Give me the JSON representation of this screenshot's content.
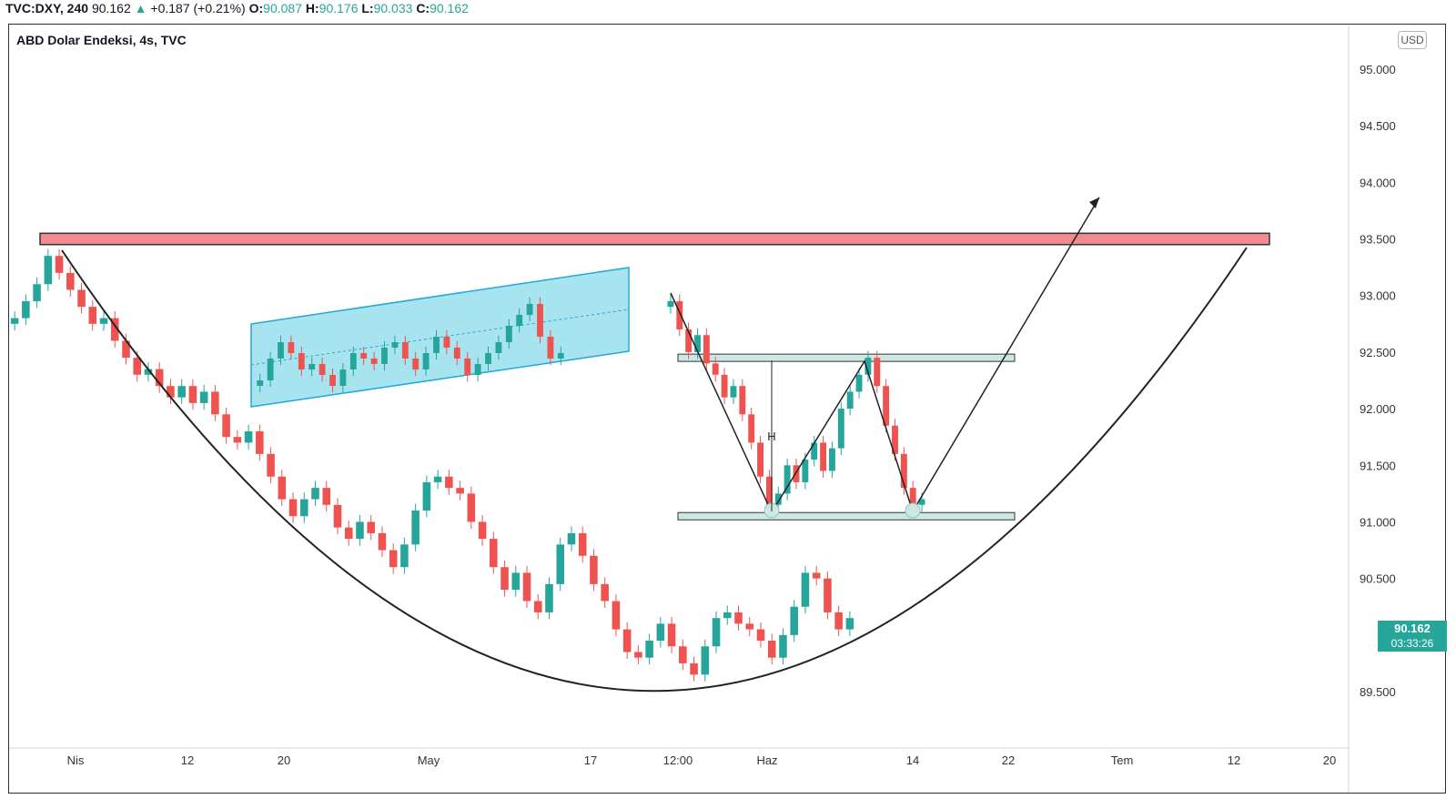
{
  "header": {
    "symbol": "TVC:DXY, 240",
    "last": "90.162",
    "change_arrow": "▲",
    "change": "+0.187 (+0.21%)",
    "o_label": "O:",
    "o_value": "90.087",
    "h_label": "H:",
    "h_value": "90.176",
    "l_label": "L:",
    "l_value": "90.033",
    "c_label": "C:",
    "c_value": "90.162"
  },
  "chart_title": "ABD Dolar Endeksi, 4s, TVC",
  "currency_button": "USD",
  "price_badge": {
    "price": "90.162",
    "timer": "03:33:26"
  },
  "colors": {
    "up": "#26a69a",
    "down": "#ef5350",
    "resistance_fill": "#f28b8f",
    "channel_fill": "#a8e3f0",
    "channel_border": "#1fa9d6",
    "level_fill": "#cde8e4"
  },
  "annotations": {
    "measure_label": "H"
  },
  "chart_data": {
    "type": "candlestick",
    "title": "ABD Dolar Endeksi, 4s, TVC",
    "y_axis": {
      "ticks": [
        95.0,
        94.5,
        94.0,
        93.5,
        93.0,
        92.5,
        92.0,
        91.5,
        91.0,
        90.5,
        89.5
      ],
      "tick_labels": [
        "95.000",
        "94.500",
        "94.000",
        "93.500",
        "93.000",
        "92.500",
        "92.000",
        "91.500",
        "91.000",
        "90.500",
        "89.500"
      ],
      "range": [
        89.05,
        95.4
      ]
    },
    "x_axis": {
      "tick_labels": [
        "Nis",
        "12",
        "20",
        "May",
        "17",
        "12:00",
        "Haz",
        "14",
        "22",
        "Tem",
        "12",
        "20"
      ]
    },
    "main_series_closes": [
      92.8,
      92.95,
      93.1,
      93.35,
      93.2,
      93.05,
      92.9,
      92.75,
      92.8,
      92.6,
      92.45,
      92.3,
      92.35,
      92.2,
      92.1,
      92.2,
      92.05,
      92.15,
      91.95,
      91.75,
      91.7,
      91.8,
      91.6,
      91.4,
      91.2,
      91.05,
      91.2,
      91.3,
      91.15,
      90.95,
      90.85,
      91.0,
      90.9,
      90.75,
      90.6,
      90.8,
      91.1,
      91.35,
      91.4,
      91.3,
      91.25,
      91.0,
      90.85,
      90.6,
      90.4,
      90.55,
      90.3,
      90.2,
      90.45,
      90.8,
      90.9,
      90.7,
      90.45,
      90.3,
      90.05,
      89.85,
      89.8,
      89.95,
      90.1,
      89.9,
      89.75,
      89.65,
      89.9,
      90.15,
      90.2,
      90.1,
      90.05,
      89.95,
      89.8,
      90.0,
      90.25,
      90.55,
      90.5,
      90.2,
      90.05,
      90.15
    ],
    "inset_channel_closes": [
      92.35,
      92.55,
      92.7,
      92.6,
      92.45,
      92.5,
      92.4,
      92.3,
      92.45,
      92.6,
      92.55,
      92.5,
      92.65,
      92.7,
      92.55,
      92.45,
      92.6,
      92.75,
      92.65,
      92.55,
      92.4,
      92.5,
      92.6,
      92.7,
      92.85,
      92.95,
      93.05,
      92.75,
      92.55,
      92.6
    ],
    "inset_double_bottom_closes": [
      92.95,
      92.7,
      92.5,
      92.65,
      92.4,
      92.3,
      92.1,
      92.2,
      91.95,
      91.7,
      91.4,
      91.15,
      91.25,
      91.5,
      91.35,
      91.55,
      91.7,
      91.45,
      91.65,
      92.0,
      92.15,
      92.3,
      92.45,
      92.2,
      91.85,
      91.6,
      91.3,
      91.15,
      91.2
    ],
    "levels": {
      "resistance_zone": [
        93.45,
        93.55
      ],
      "double_bottom_neckline": 92.45,
      "double_bottom_support": 91.05
    }
  }
}
